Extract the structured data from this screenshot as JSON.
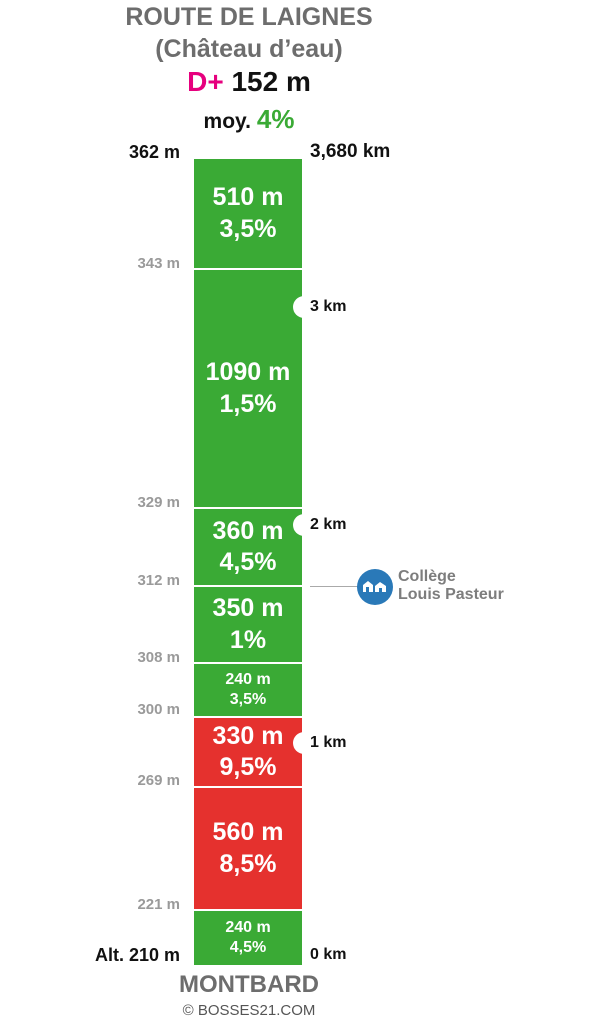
{
  "header": {
    "title": "ROUTE DE LAIGNES",
    "subtitle": "(Château d’eau)",
    "dplus_label": "D+",
    "dplus_value": "152 m",
    "avg_label": "moy.",
    "avg_value": "4%"
  },
  "colors": {
    "climb_easy": "#3aaa35",
    "climb_hard": "#e5312e",
    "accent": "#e6007e",
    "poi": "#2a79b8"
  },
  "segments": [
    {
      "length": "510 m",
      "grade": "3,5%",
      "color": "green"
    },
    {
      "length": "1090 m",
      "grade": "1,5%",
      "color": "green"
    },
    {
      "length": "360 m",
      "grade": "4,5%",
      "color": "green"
    },
    {
      "length": "350 m",
      "grade": "1%",
      "color": "green"
    },
    {
      "length": "240 m",
      "grade": "3,5%",
      "color": "green"
    },
    {
      "length": "330 m",
      "grade": "9,5%",
      "color": "red"
    },
    {
      "length": "560 m",
      "grade": "8,5%",
      "color": "red"
    },
    {
      "length": "240 m",
      "grade": "4,5%",
      "color": "green"
    }
  ],
  "altitudes": [
    "362 m",
    "343 m",
    "329 m",
    "312 m",
    "308 m",
    "300 m",
    "269 m",
    "221 m",
    "Alt. 210 m"
  ],
  "km_markers": [
    "3,680 km",
    "3 km",
    "2 km",
    "1 km",
    "0 km"
  ],
  "poi": {
    "icon": "school-icon",
    "line1": "Collège",
    "line2": "Louis Pasteur"
  },
  "footer": {
    "town": "MONTBARD",
    "credit": "© BOSSES21.COM"
  }
}
